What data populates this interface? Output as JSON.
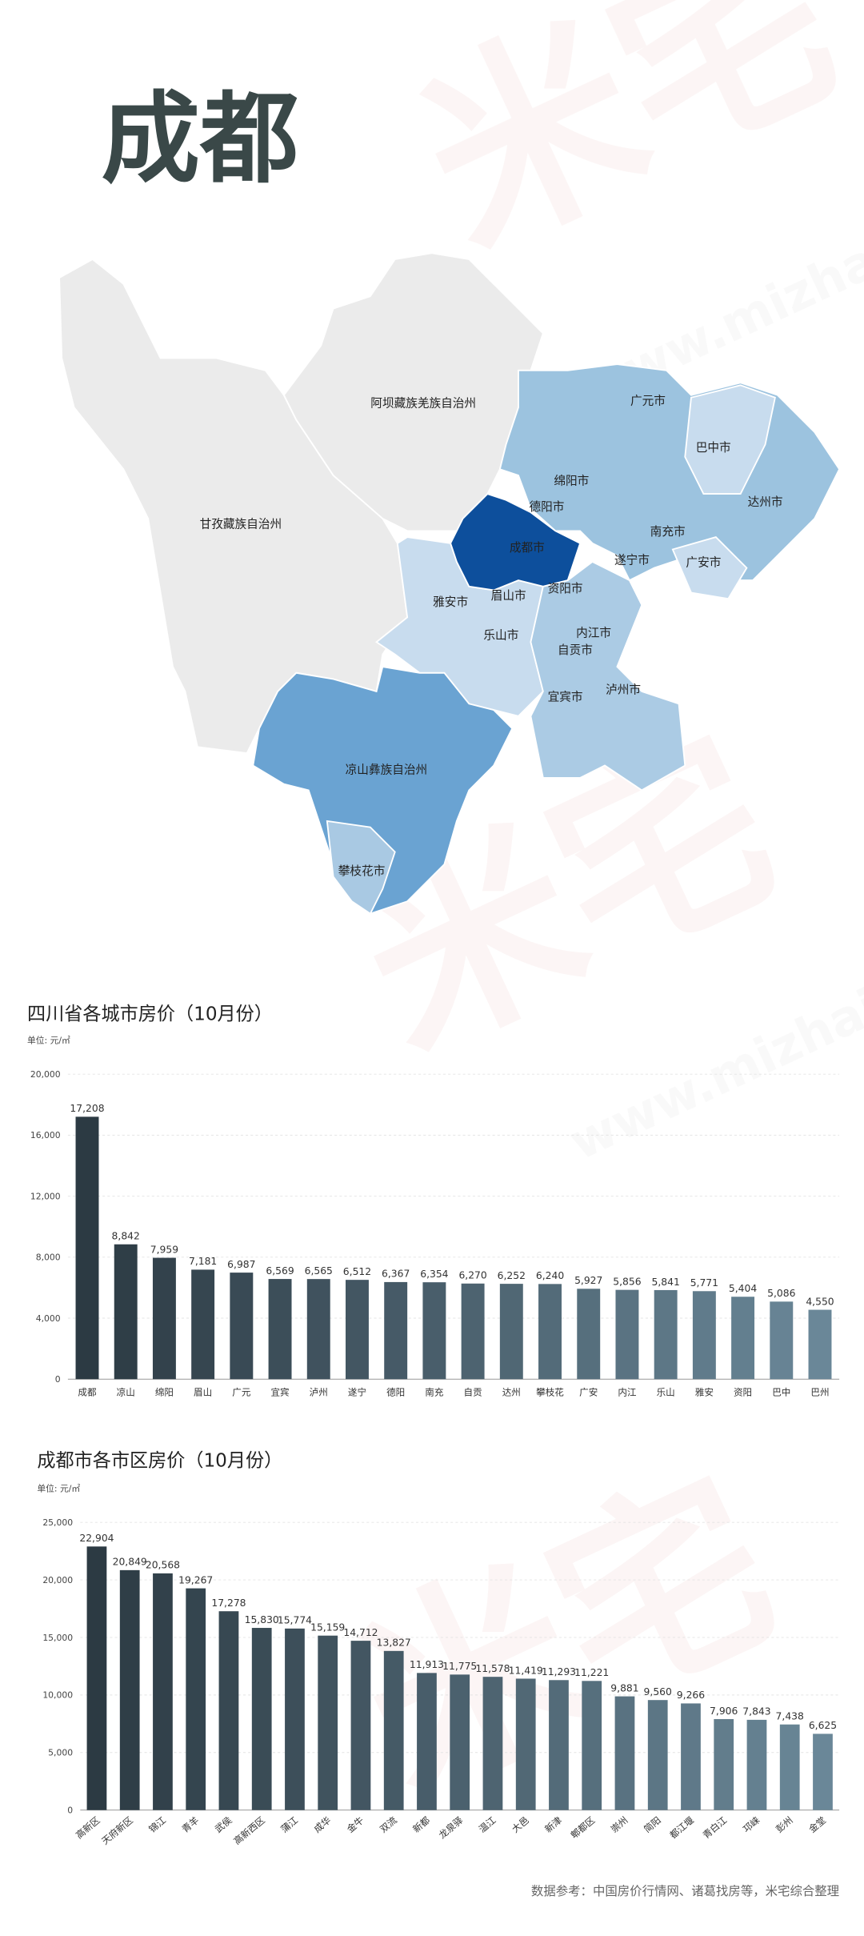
{
  "header": {
    "title": "成都"
  },
  "watermark": {
    "brand": "米宅",
    "url": "www.mizhai.com"
  },
  "map": {
    "labels": [
      "阿坝藏族羌族自治州",
      "甘孜藏族自治州",
      "广元市",
      "巴中市",
      "绵阳市",
      "达州市",
      "德阳市",
      "南充市",
      "成都市",
      "遂宁市",
      "广安市",
      "资阳市",
      "雅安市",
      "眉山市",
      "内江市",
      "乐山市",
      "自贡市",
      "泸州市",
      "宜宾市",
      "凉山彝族自治州",
      "攀枝花市"
    ]
  },
  "chart_data": [
    {
      "type": "bar",
      "title": "四川省各城市房价（10月份）",
      "y_label": "单位: 元/㎡",
      "categories": [
        "成都",
        "凉山",
        "绵阳",
        "眉山",
        "广元",
        "宜宾",
        "泸州",
        "遂宁",
        "德阳",
        "南充",
        "自贡",
        "达州",
        "攀枝花",
        "广安",
        "内江",
        "乐山",
        "雅安",
        "资阳",
        "巴中",
        "巴州"
      ],
      "values": [
        17208,
        8842,
        7959,
        7181,
        6987,
        6569,
        6565,
        6512,
        6367,
        6354,
        6270,
        6252,
        6240,
        5927,
        5856,
        5841,
        5771,
        5404,
        5086,
        4550
      ],
      "value_labels": [
        "17,208",
        "8,842",
        "7,959",
        "7,181",
        "6,987",
        "6,569",
        "6,565",
        "6,512",
        "6,367",
        "6,354",
        "6,270",
        "6,252",
        "6,240",
        "5,927",
        "5,856",
        "5,841",
        "5,771",
        "5,404",
        "5,086",
        "4,550"
      ],
      "ylim": [
        0,
        20000
      ],
      "yticks": [
        0,
        {
          "value": 4000,
          "label": "4,000"
        },
        {
          "value": 8000,
          "label": "8,000"
        },
        {
          "value": 12000,
          "label": "12,000"
        },
        {
          "value": 16000,
          "label": "16,000"
        },
        {
          "value": 20000,
          "label": "20,000"
        }
      ],
      "grid": true,
      "color_range": [
        "#2c3a43",
        "#6a8798"
      ]
    },
    {
      "type": "bar",
      "title": "成都市各市区房价（10月份）",
      "y_label": "单位: 元/㎡",
      "categories": [
        "高新区",
        "天府新区",
        "锦江",
        "青羊",
        "武侯",
        "高新西区",
        "蒲江",
        "成华",
        "金牛",
        "双流",
        "新都",
        "龙泉驿",
        "温江",
        "大邑",
        "新津",
        "郫都区",
        "崇州",
        "简阳",
        "都江堰",
        "青白江",
        "邛崃",
        "彭州",
        "金堂"
      ],
      "values": [
        22904,
        20849,
        20568,
        19267,
        17278,
        15830,
        15774,
        15159,
        14712,
        13827,
        11913,
        11775,
        11578,
        11419,
        11293,
        11221,
        9881,
        9560,
        9266,
        7906,
        7843,
        7438,
        6625
      ],
      "value_labels": [
        "22,904",
        "20,849",
        "20,568",
        "19,267",
        "17,278",
        "15,830",
        "15,774",
        "15,159",
        "14,712",
        "13,827",
        "11,913",
        "11,775",
        "11,578",
        "11,419",
        "11,293",
        "11,221",
        "9,881",
        "9,560",
        "9,266",
        "7,906",
        "7,843",
        "7,438",
        "6,625"
      ],
      "ylim": [
        0,
        25000
      ],
      "yticks": [
        0,
        {
          "value": 5000,
          "label": "5,000"
        },
        {
          "value": 10000,
          "label": "10,000"
        },
        {
          "value": 15000,
          "label": "15,000"
        },
        {
          "value": 20000,
          "label": "20,000"
        },
        {
          "value": 25000,
          "label": "25,000"
        }
      ],
      "grid": true,
      "color_range": [
        "#2c3a43",
        "#6a8798"
      ]
    }
  ],
  "footer": "数据参考：中国房价行情网、诸葛找房等，米宅综合整理"
}
